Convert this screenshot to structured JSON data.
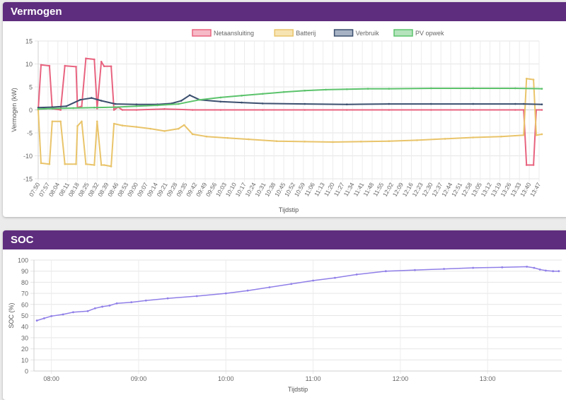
{
  "cards": {
    "vermogen_title": "Vermogen",
    "soc_title": "SOC"
  },
  "chart_data": [
    {
      "type": "line",
      "name_on_page": "Vermogen",
      "xlabel": "Tijdstip",
      "ylabel": "Vermogen (kW)",
      "ylim": [
        -15,
        15
      ],
      "yticks": [
        -15,
        -10,
        -5,
        0,
        5,
        10,
        15
      ],
      "grid": true,
      "legend_position": "top",
      "x_tick_labels": [
        "07:50",
        "07:57",
        "08:04",
        "08:11",
        "08:18",
        "08:25",
        "08:32",
        "08:39",
        "08:46",
        "08:53",
        "09:00",
        "09:07",
        "09:14",
        "09:21",
        "09:28",
        "09:35",
        "09:42",
        "09:49",
        "09:56",
        "10:03",
        "10:10",
        "10:17",
        "10:24",
        "10:31",
        "10:38",
        "10:45",
        "10:52",
        "10:59",
        "11:06",
        "11:13",
        "11:20",
        "11:27",
        "11:34",
        "11:41",
        "11:48",
        "11:55",
        "12:02",
        "12:09",
        "12:16",
        "12:23",
        "12:30",
        "12:37",
        "12:44",
        "12:51",
        "12:58",
        "13:05",
        "13:12",
        "13:19",
        "13:26",
        "13:33",
        "13:40",
        "13:47"
      ],
      "series": [
        {
          "name": "Netaansluiting",
          "color": "#e8637f",
          "fill": "#f6b9c6",
          "points": [
            [
              "07:50",
              0
            ],
            [
              "07:52",
              9.8
            ],
            [
              "07:58",
              9.6
            ],
            [
              "08:00",
              0.3
            ],
            [
              "08:06",
              0
            ],
            [
              "08:09",
              9.6
            ],
            [
              "08:17",
              9.4
            ],
            [
              "08:18",
              0.5
            ],
            [
              "08:21",
              0.8
            ],
            [
              "08:24",
              11.2
            ],
            [
              "08:30",
              11
            ],
            [
              "08:32",
              0.3
            ],
            [
              "08:35",
              10.5
            ],
            [
              "08:37",
              9.5
            ],
            [
              "08:42",
              9.5
            ],
            [
              "08:44",
              0
            ],
            [
              "08:47",
              0.6
            ],
            [
              "08:50",
              0
            ],
            [
              "09:00",
              0
            ],
            [
              "09:20",
              0.2
            ],
            [
              "09:40",
              0
            ],
            [
              "10:00",
              0
            ],
            [
              "10:30",
              0
            ],
            [
              "11:00",
              0
            ],
            [
              "11:30",
              0
            ],
            [
              "12:00",
              0
            ],
            [
              "12:30",
              0
            ],
            [
              "13:00",
              0
            ],
            [
              "13:30",
              0
            ],
            [
              "13:36",
              0
            ],
            [
              "13:38",
              -12
            ],
            [
              "13:43",
              -12
            ],
            [
              "13:45",
              0
            ],
            [
              "13:49",
              0
            ]
          ]
        },
        {
          "name": "Batterij",
          "color": "#e9c46a",
          "fill": "#f7e4b3",
          "points": [
            [
              "07:50",
              0
            ],
            [
              "07:52",
              -11.6
            ],
            [
              "07:58",
              -11.8
            ],
            [
              "08:00",
              -2.5
            ],
            [
              "08:06",
              -2.5
            ],
            [
              "08:09",
              -11.8
            ],
            [
              "08:17",
              -11.8
            ],
            [
              "08:18",
              -3.5
            ],
            [
              "08:21",
              -2.5
            ],
            [
              "08:24",
              -11.8
            ],
            [
              "08:30",
              -12
            ],
            [
              "08:32",
              -2.5
            ],
            [
              "08:35",
              -12
            ],
            [
              "08:37",
              -12
            ],
            [
              "08:42",
              -12.3
            ],
            [
              "08:44",
              -3
            ],
            [
              "08:50",
              -3.4
            ],
            [
              "09:00",
              -3.7
            ],
            [
              "09:10",
              -4.1
            ],
            [
              "09:20",
              -4.6
            ],
            [
              "09:30",
              -4.1
            ],
            [
              "09:34",
              -3.3
            ],
            [
              "09:40",
              -5.3
            ],
            [
              "09:50",
              -5.8
            ],
            [
              "10:05",
              -6.1
            ],
            [
              "10:20",
              -6.4
            ],
            [
              "10:40",
              -6.8
            ],
            [
              "11:00",
              -6.9
            ],
            [
              "11:20",
              -7.0
            ],
            [
              "11:40",
              -6.9
            ],
            [
              "12:00",
              -6.8
            ],
            [
              "12:20",
              -6.6
            ],
            [
              "12:40",
              -6.3
            ],
            [
              "13:00",
              -6.0
            ],
            [
              "13:20",
              -5.8
            ],
            [
              "13:36",
              -5.5
            ],
            [
              "13:38",
              6.8
            ],
            [
              "13:43",
              6.6
            ],
            [
              "13:45",
              -5.5
            ],
            [
              "13:49",
              -5.3
            ]
          ]
        },
        {
          "name": "Verbruik",
          "color": "#3b4f6e",
          "fill": "#a7b3c4",
          "points": [
            [
              "07:50",
              0.5
            ],
            [
              "08:00",
              0.6
            ],
            [
              "08:10",
              0.8
            ],
            [
              "08:20",
              2.2
            ],
            [
              "08:28",
              2.6
            ],
            [
              "08:35",
              2.0
            ],
            [
              "08:45",
              1.3
            ],
            [
              "09:00",
              1.2
            ],
            [
              "09:15",
              1.2
            ],
            [
              "09:25",
              1.4
            ],
            [
              "09:32",
              2.0
            ],
            [
              "09:38",
              3.2
            ],
            [
              "09:45",
              2.2
            ],
            [
              "10:00",
              1.8
            ],
            [
              "10:15",
              1.6
            ],
            [
              "10:30",
              1.4
            ],
            [
              "11:00",
              1.3
            ],
            [
              "11:30",
              1.2
            ],
            [
              "12:00",
              1.3
            ],
            [
              "12:30",
              1.3
            ],
            [
              "13:00",
              1.3
            ],
            [
              "13:30",
              1.3
            ],
            [
              "13:36",
              1.3
            ],
            [
              "13:49",
              1.2
            ]
          ]
        },
        {
          "name": "PV opwek",
          "color": "#5cc36c",
          "fill": "#b4e3bc",
          "points": [
            [
              "07:50",
              0.2
            ],
            [
              "08:00",
              0.3
            ],
            [
              "08:15",
              0.4
            ],
            [
              "08:30",
              0.5
            ],
            [
              "08:45",
              0.6
            ],
            [
              "09:00",
              0.8
            ],
            [
              "09:15",
              1.0
            ],
            [
              "09:30",
              1.3
            ],
            [
              "09:45",
              2.2
            ],
            [
              "10:00",
              2.7
            ],
            [
              "10:15",
              3.1
            ],
            [
              "10:30",
              3.5
            ],
            [
              "10:45",
              3.9
            ],
            [
              "11:00",
              4.2
            ],
            [
              "11:15",
              4.4
            ],
            [
              "11:30",
              4.5
            ],
            [
              "11:45",
              4.6
            ],
            [
              "12:00",
              4.6
            ],
            [
              "12:30",
              4.7
            ],
            [
              "13:00",
              4.7
            ],
            [
              "13:30",
              4.7
            ],
            [
              "13:49",
              4.6
            ]
          ]
        }
      ]
    },
    {
      "type": "line",
      "name_on_page": "SOC",
      "xlabel": "Tijdstip",
      "ylabel": "SOC (%)",
      "ylim": [
        0,
        100
      ],
      "yticks": [
        0,
        10,
        20,
        30,
        40,
        50,
        60,
        70,
        80,
        90,
        100
      ],
      "grid": true,
      "x_tick_labels": [
        "08:00",
        "09:00",
        "10:00",
        "11:00",
        "12:00",
        "13:00"
      ],
      "series": [
        {
          "name": "SOC",
          "color": "#8f7fe8",
          "points": [
            [
              "07:50",
              45.5
            ],
            [
              "07:55",
              47.5
            ],
            [
              "08:00",
              49.5
            ],
            [
              "08:08",
              51
            ],
            [
              "08:15",
              53
            ],
            [
              "08:25",
              54
            ],
            [
              "08:30",
              56.5
            ],
            [
              "08:35",
              58
            ],
            [
              "08:40",
              59
            ],
            [
              "08:45",
              61
            ],
            [
              "08:55",
              62
            ],
            [
              "09:05",
              63.5
            ],
            [
              "09:20",
              65.5
            ],
            [
              "09:40",
              67.5
            ],
            [
              "10:00",
              70
            ],
            [
              "10:15",
              72.5
            ],
            [
              "10:30",
              75.5
            ],
            [
              "10:45",
              78.5
            ],
            [
              "11:00",
              81.5
            ],
            [
              "11:15",
              84
            ],
            [
              "11:30",
              87
            ],
            [
              "11:50",
              90
            ],
            [
              "12:10",
              91
            ],
            [
              "12:30",
              92
            ],
            [
              "12:50",
              93
            ],
            [
              "13:10",
              93.5
            ],
            [
              "13:27",
              94
            ],
            [
              "13:32",
              93
            ],
            [
              "13:36",
              91.5
            ],
            [
              "13:40",
              90.5
            ],
            [
              "13:45",
              90
            ],
            [
              "13:49",
              90
            ]
          ]
        }
      ]
    }
  ]
}
